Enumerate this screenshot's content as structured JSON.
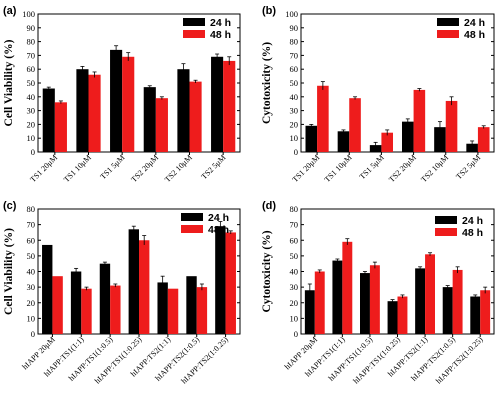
{
  "colors": {
    "series_24h": "#000000",
    "series_48h": "#ee1c1c"
  },
  "chart_data": [
    {
      "panel": "(a)",
      "type": "bar",
      "ylabel": "Cell Viability (%)",
      "ylim": [
        0,
        100
      ],
      "yticks": [
        0,
        10,
        20,
        30,
        40,
        50,
        60,
        70,
        80,
        90,
        100
      ],
      "categories": [
        "TS1 20μM",
        "TS1 10μM",
        "TS1 5μM",
        "TS2 20μM",
        "TS2 10μM",
        "TS2 5μM"
      ],
      "legend_position": "top-right",
      "series": [
        {
          "name": "24 h",
          "values": [
            46,
            60,
            74,
            47,
            60,
            69
          ],
          "errors": [
            1,
            2,
            3,
            1,
            4,
            2
          ]
        },
        {
          "name": "48 h",
          "values": [
            36,
            56,
            69,
            39,
            51,
            66
          ],
          "errors": [
            1,
            2,
            3,
            1,
            1,
            3
          ]
        }
      ]
    },
    {
      "panel": "(b)",
      "type": "bar",
      "ylabel": "Cytotoxicity (%)",
      "ylim": [
        0,
        100
      ],
      "yticks": [
        0,
        10,
        20,
        30,
        40,
        50,
        60,
        70,
        80,
        90,
        100
      ],
      "categories": [
        "TS1 20μM",
        "TS1 10μM",
        "TS1 5μM",
        "TS2 20μM",
        "TS2 10μM",
        "TS2 5μM"
      ],
      "legend_position": "top-right",
      "series": [
        {
          "name": "24 h",
          "values": [
            19,
            15,
            5,
            22,
            18,
            6
          ],
          "errors": [
            1,
            1,
            2,
            2,
            4,
            2
          ]
        },
        {
          "name": "48 h",
          "values": [
            48,
            39,
            14,
            45,
            37,
            18
          ],
          "errors": [
            3,
            1,
            2,
            1,
            3,
            1
          ]
        }
      ]
    },
    {
      "panel": "(c)",
      "type": "bar",
      "ylabel": "Cell Viability (%)",
      "ylim": [
        0,
        80
      ],
      "yticks": [
        0,
        10,
        20,
        30,
        40,
        50,
        60,
        70,
        80
      ],
      "categories": [
        "hIAPP 20μM",
        "hIAPP:TS1(1:1)",
        "hIAPP:TS1(1:0.5)",
        "hIAPP:TS1(1:0.25)",
        "hIAPP:TS2(1:1)",
        "hIAPP:TS2(1:0.5)",
        "hIAPP:TS2(1:0.25)"
      ],
      "legend_position": "top-right",
      "series": [
        {
          "name": "24 h",
          "values": [
            57,
            40,
            45,
            67,
            33,
            37,
            69
          ],
          "errors": [
            0,
            2,
            1,
            2,
            4,
            0,
            3
          ]
        },
        {
          "name": "48 h",
          "values": [
            37,
            29,
            31,
            60,
            29,
            30,
            65
          ],
          "errors": [
            0,
            1,
            1,
            3,
            0,
            2,
            1
          ]
        }
      ]
    },
    {
      "panel": "(d)",
      "type": "bar",
      "ylabel": "Cytotoxicity (%)",
      "ylim": [
        0,
        80
      ],
      "yticks": [
        0,
        10,
        20,
        30,
        40,
        50,
        60,
        70,
        80
      ],
      "categories": [
        "hIAPP 20μM",
        "hIAPP:TS1(1:1)",
        "hIAPP:TS1(1:0.5)",
        "hIAPP:TS1(1:0.25)",
        "hIAPP:TS2(1:1)",
        "hIAPP:TS2(1:0.5)",
        "hIAPP:TS2(1:0.25)"
      ],
      "legend_position": "top-right",
      "series": [
        {
          "name": "24 h",
          "values": [
            28,
            47,
            39,
            21,
            42,
            30,
            24
          ],
          "errors": [
            4,
            1,
            1,
            1,
            1,
            1,
            1
          ]
        },
        {
          "name": "48 h",
          "values": [
            40,
            59,
            44,
            24,
            51,
            41,
            28
          ],
          "errors": [
            1,
            2,
            2,
            1,
            1,
            2,
            2
          ]
        }
      ]
    }
  ]
}
